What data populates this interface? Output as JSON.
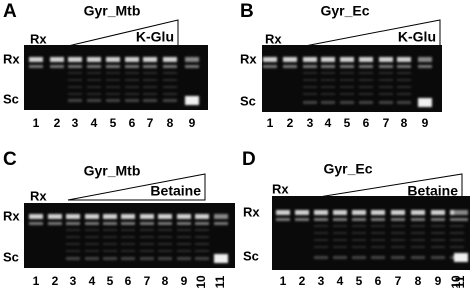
{
  "panels": [
    {
      "letter": "A",
      "title": "Gyr_Mtb",
      "gradient_label": "K-Glu",
      "top_label": "Rx",
      "row_labels": [
        "Rx",
        "Sc"
      ],
      "lanes": [
        "1",
        "2",
        "3",
        "4",
        "5",
        "6",
        "7",
        "8",
        "9"
      ]
    },
    {
      "letter": "B",
      "title": "Gyr_Ec",
      "gradient_label": "K-Glu",
      "top_label": "Rx",
      "row_labels": [
        "Rx",
        "Sc"
      ],
      "lanes": [
        "1",
        "2",
        "3",
        "4",
        "5",
        "6",
        "7",
        "8",
        "9"
      ]
    },
    {
      "letter": "C",
      "title": "Gyr_Mtb",
      "gradient_label": "Betaine",
      "top_label": "Rx",
      "row_labels": [
        "Rx",
        "Sc"
      ],
      "lanes": [
        "1",
        "2",
        "3",
        "4",
        "5",
        "6",
        "7",
        "8",
        "9",
        "10",
        "11"
      ]
    },
    {
      "letter": "D",
      "title": "Gyr_Ec",
      "gradient_label": "Betaine",
      "top_label": "Rx",
      "row_labels": [
        "Rx",
        "Sc"
      ],
      "lanes": [
        "1",
        "2",
        "3",
        "4",
        "5",
        "6",
        "7",
        "8",
        "9",
        "10",
        "11"
      ]
    }
  ]
}
